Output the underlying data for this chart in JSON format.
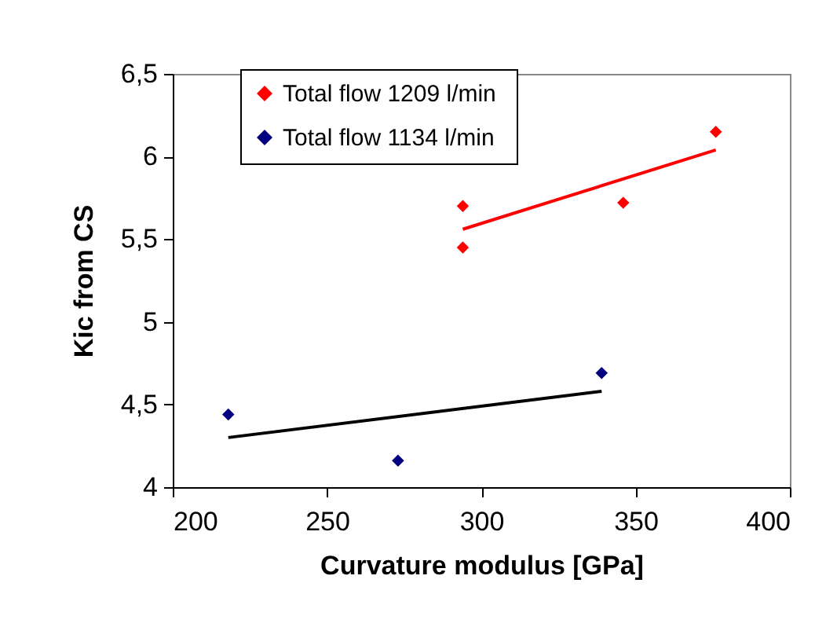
{
  "chart_data": {
    "type": "scatter",
    "xlabel": "Curvature modulus [GPa]",
    "ylabel": "Kic from CS",
    "xlim": [
      200,
      400
    ],
    "xticks": [
      200,
      250,
      300,
      350,
      400
    ],
    "ylim": [
      4,
      6.5
    ],
    "yticks": [
      4,
      {
        "value": 4.5,
        "label": "4,5"
      },
      5,
      {
        "value": 5.5,
        "label": "5,5"
      },
      6,
      {
        "value": 6.5,
        "label": "6,5"
      }
    ],
    "grid": false,
    "legend": "top left",
    "marker": "diamond",
    "series": [
      {
        "name": "Total flow  1209 l/min",
        "color": "#ff0000",
        "x": [
          294,
          294,
          346,
          376
        ],
        "values": [
          5.7,
          5.45,
          5.72,
          6.15
        ]
      },
      {
        "name": "Total flow  1134 l/min",
        "color": "#000080",
        "x": [
          218,
          273,
          339
        ],
        "values": [
          4.44,
          4.16,
          4.69
        ]
      },
      {
        "type": "line",
        "marker": "none",
        "color": "#ff0000",
        "x": [
          294,
          376
        ],
        "values": [
          5.56,
          6.04
        ]
      },
      {
        "type": "line",
        "marker": "none",
        "color": "#000000",
        "x": [
          218,
          339
        ],
        "values": [
          4.3,
          4.58
        ]
      }
    ]
  }
}
